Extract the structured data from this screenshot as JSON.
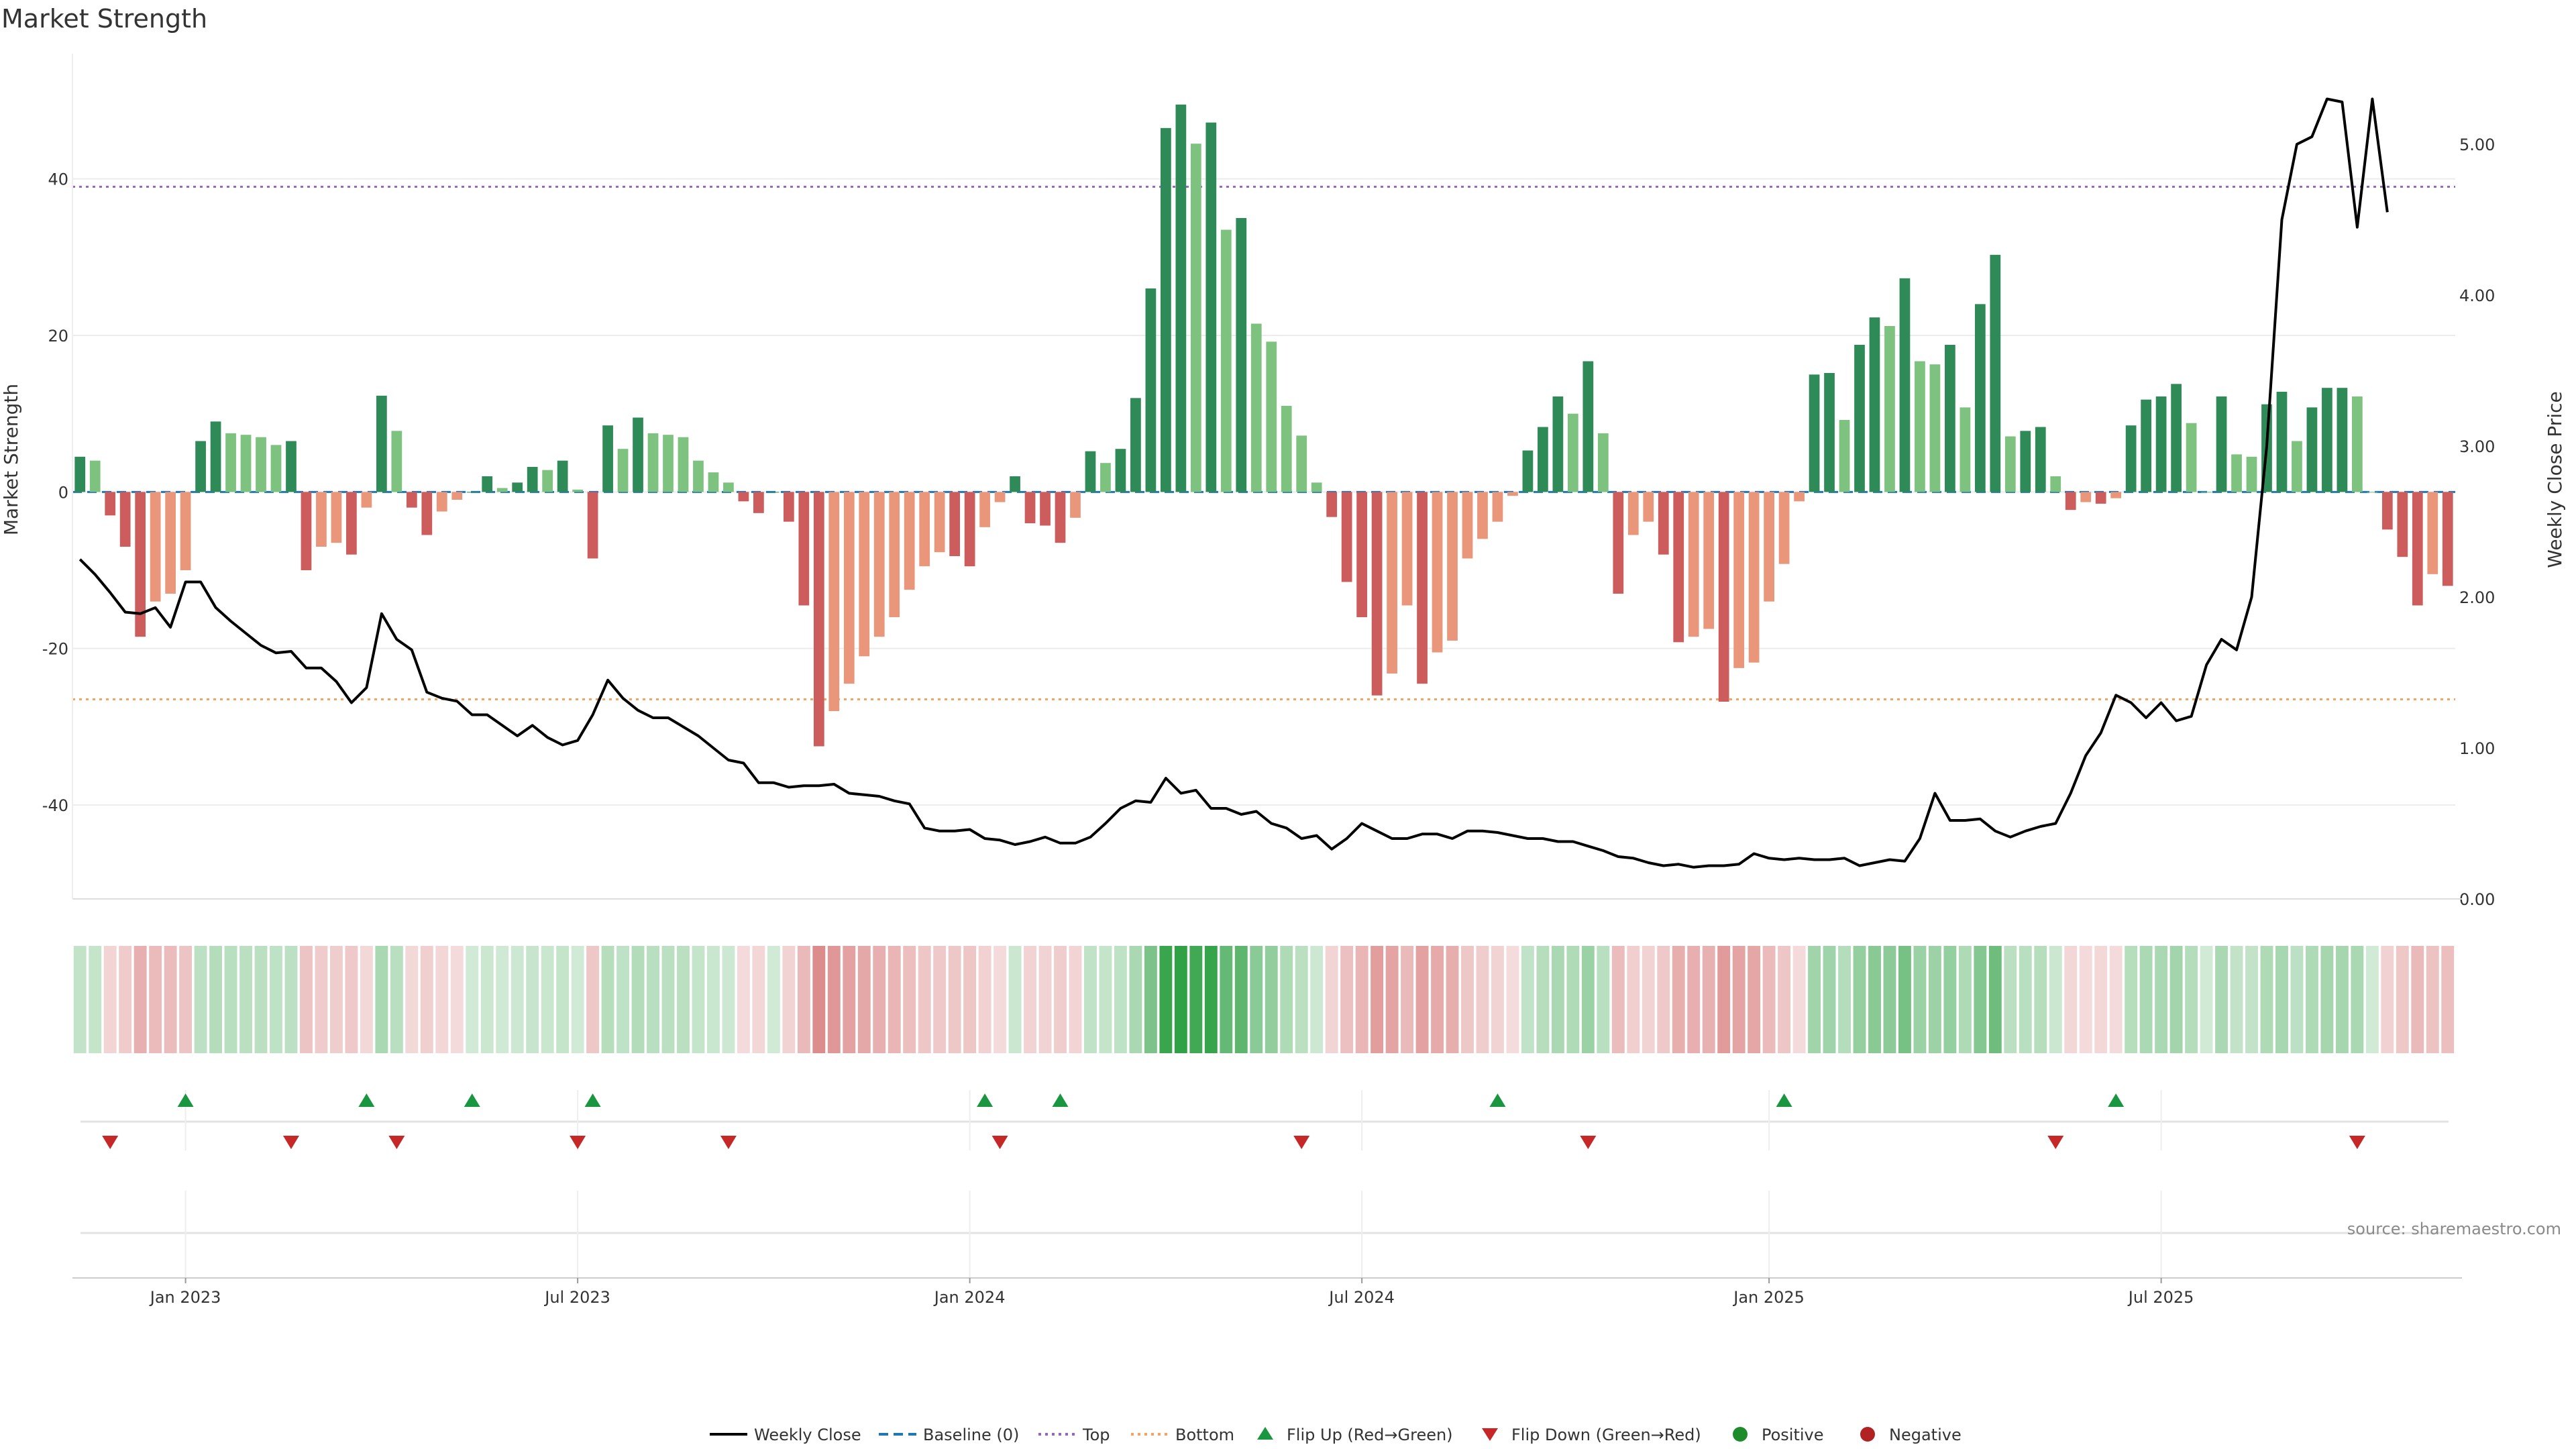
{
  "title": "Market Strength",
  "source": "source: sharemaestro.com",
  "colors": {
    "pos_strong": "#2e8b57",
    "pos_weak": "#7dc27f",
    "neg_strong": "#cd5c5c",
    "neg_weak": "#e9967a",
    "top_line": "#9467bd",
    "bottom_line": "#f4a460",
    "baseline": "#1f77b4",
    "price": "#000000",
    "flip_up": "#1a9641",
    "flip_down": "#c62828"
  },
  "chart_data": {
    "type": "bar",
    "ylabel_left": "Market Strength",
    "ylabel_right": "Weekly Close Price",
    "left_ticks": [
      40,
      20,
      0,
      -20,
      -40
    ],
    "right_ticks": [
      "5.00",
      "4.00",
      "3.00",
      "2.00",
      "1.00",
      "0.00"
    ],
    "x_ticks": [
      {
        "label": "Jan 2023",
        "week": 7
      },
      {
        "label": "Jul 2023",
        "week": 33
      },
      {
        "label": "Jan 2024",
        "week": 59
      },
      {
        "label": "Jul 2024",
        "week": 85
      },
      {
        "label": "Jan 2025",
        "week": 112
      },
      {
        "label": "Jul 2025",
        "week": 138
      }
    ],
    "ylim_left": [
      -52,
      56
    ],
    "ylim_right": [
      0,
      5.6
    ],
    "top_level": 39,
    "bottom_level": -26.5,
    "strength": [
      4.5,
      4,
      -3,
      -7,
      -18.5,
      -14,
      -13,
      -10,
      6.5,
      9,
      7.5,
      7.3,
      7,
      6,
      6.5,
      -10,
      -7,
      -6.5,
      -8,
      -2,
      12.3,
      7.8,
      -2,
      -5.5,
      -2.5,
      -1,
      0,
      2,
      0.5,
      1.2,
      3.2,
      2.8,
      4,
      0.3,
      -8.5,
      8.5,
      5.5,
      9.5,
      7.5,
      7.3,
      7,
      4,
      2.5,
      1.2,
      -1.2,
      -2.7,
      0,
      -3.8,
      -14.5,
      -32.5,
      -28,
      -24.5,
      -21,
      -18.5,
      -16,
      -12.5,
      -9.5,
      -7.7,
      -8.2,
      -9.5,
      -4.5,
      -1.3,
      2,
      -4,
      -4.3,
      -6.5,
      -3.3,
      5.2,
      3.7,
      5.5,
      12,
      26,
      46.5,
      49.5,
      44.5,
      47.2,
      33.5,
      35,
      21.5,
      19.2,
      11,
      7.2,
      1.2,
      -3.2,
      -11.5,
      -16,
      -26,
      -23.2,
      -14.5,
      -24.5,
      -20.5,
      -19,
      -8.5,
      -6,
      -3.8,
      -0.5,
      5.3,
      8.3,
      12.2,
      10,
      16.7,
      7.5,
      -13,
      -5.5,
      -3.8,
      -8,
      -19.2,
      -18.5,
      -17.5,
      -26.8,
      -22.5,
      -21.8,
      -14,
      -9.2,
      -1.2,
      15,
      15.2,
      9.2,
      18.8,
      22.3,
      21.2,
      27.3,
      16.7,
      16.3,
      18.8,
      10.8,
      24,
      30.3,
      7.1,
      7.8,
      8.3,
      2,
      -2.3,
      -1.3,
      -1.5,
      -0.8,
      8.5,
      11.8,
      12.2,
      13.8,
      8.8,
      0,
      12.2,
      4.8,
      4.5,
      11.2,
      12.8,
      6.5,
      10.8,
      13.3,
      13.3,
      12.2,
      0,
      -4.8,
      -8.3,
      -14.5,
      -10.5,
      -12
    ],
    "price": [
      2.25,
      2.15,
      2.03,
      1.9,
      1.89,
      1.93,
      1.8,
      2.1,
      2.1,
      1.93,
      1.84,
      1.76,
      1.68,
      1.63,
      1.64,
      1.53,
      1.53,
      1.44,
      1.3,
      1.4,
      1.89,
      1.72,
      1.65,
      1.37,
      1.33,
      1.31,
      1.22,
      1.22,
      1.15,
      1.08,
      1.15,
      1.07,
      1.02,
      1.05,
      1.22,
      1.45,
      1.33,
      1.25,
      1.2,
      1.2,
      1.14,
      1.08,
      1.0,
      0.92,
      0.9,
      0.77,
      0.77,
      0.74,
      0.75,
      0.75,
      0.76,
      0.7,
      0.69,
      0.68,
      0.65,
      0.63,
      0.47,
      0.45,
      0.45,
      0.46,
      0.4,
      0.39,
      0.36,
      0.38,
      0.41,
      0.37,
      0.37,
      0.41,
      0.5,
      0.6,
      0.65,
      0.64,
      0.8,
      0.7,
      0.72,
      0.6,
      0.6,
      0.56,
      0.58,
      0.5,
      0.47,
      0.4,
      0.42,
      0.33,
      0.4,
      0.5,
      0.45,
      0.4,
      0.4,
      0.43,
      0.43,
      0.4,
      0.45,
      0.45,
      0.44,
      0.42,
      0.4,
      0.4,
      0.38,
      0.38,
      0.35,
      0.32,
      0.28,
      0.27,
      0.24,
      0.22,
      0.23,
      0.21,
      0.22,
      0.22,
      0.23,
      0.3,
      0.27,
      0.26,
      0.27,
      0.26,
      0.26,
      0.27,
      0.22,
      0.24,
      0.26,
      0.25,
      0.4,
      0.7,
      0.52,
      0.52,
      0.53,
      0.45,
      0.41,
      0.45,
      0.48,
      0.5,
      0.7,
      0.95,
      1.1,
      1.35,
      1.3,
      1.2,
      1.3,
      1.18,
      1.21,
      1.55,
      1.72,
      1.65,
      2.0,
      3.0,
      4.5,
      5.0,
      5.05,
      5.3,
      5.28,
      4.45,
      5.3,
      4.55
    ],
    "flip_up_weeks": [
      7,
      19,
      26,
      34,
      60,
      65,
      94,
      113,
      135
    ],
    "flip_down_weeks": [
      2,
      14,
      21,
      33,
      43,
      61,
      81,
      100,
      131,
      151
    ],
    "legend": [
      "Weekly Close",
      "Baseline (0)",
      "Top",
      "Bottom",
      "Flip Up (Red→Green)",
      "Flip Down (Green→Red)",
      "Positive",
      "Negative"
    ]
  }
}
